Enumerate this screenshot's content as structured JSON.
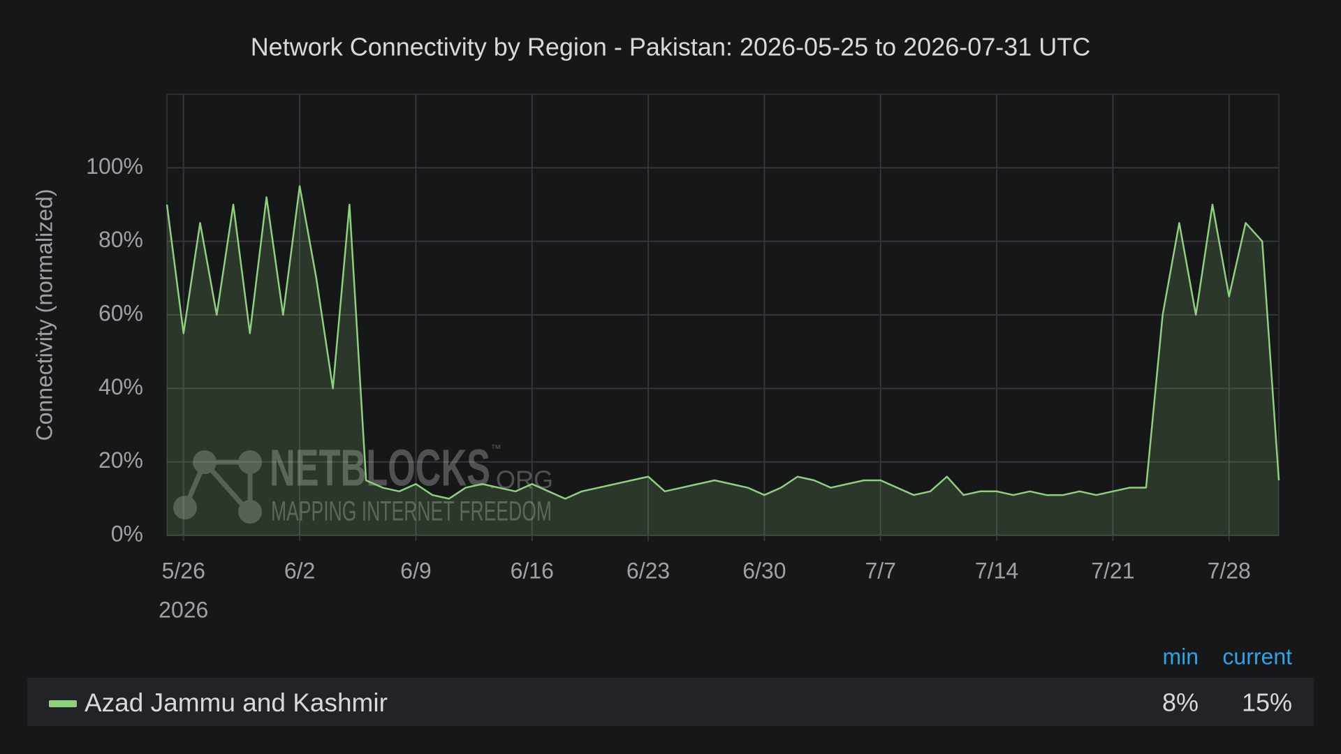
{
  "chart_data": {
    "type": "line",
    "title": "Network Connectivity by Region - Pakistan: 2026-05-25 to 2026-07-31 UTC",
    "ylabel": "Connectivity (normalized)",
    "x": [
      "2026-05-25",
      "2026-05-26",
      "2026-05-27",
      "2026-05-28",
      "2026-05-29",
      "2026-05-30",
      "2026-05-31",
      "2026-06-01",
      "2026-06-02",
      "2026-06-03",
      "2026-06-04",
      "2026-06-05",
      "2026-06-06",
      "2026-06-07",
      "2026-06-08",
      "2026-06-09",
      "2026-06-10",
      "2026-06-11",
      "2026-06-12",
      "2026-06-13",
      "2026-06-14",
      "2026-06-15",
      "2026-06-16",
      "2026-06-17",
      "2026-06-18",
      "2026-06-19",
      "2026-06-20",
      "2026-06-21",
      "2026-06-22",
      "2026-06-23",
      "2026-06-24",
      "2026-06-25",
      "2026-06-26",
      "2026-06-27",
      "2026-06-28",
      "2026-06-29",
      "2026-06-30",
      "2026-07-01",
      "2026-07-02",
      "2026-07-03",
      "2026-07-04",
      "2026-07-05",
      "2026-07-06",
      "2026-07-07",
      "2026-07-08",
      "2026-07-09",
      "2026-07-10",
      "2026-07-11",
      "2026-07-12",
      "2026-07-13",
      "2026-07-14",
      "2026-07-15",
      "2026-07-16",
      "2026-07-17",
      "2026-07-18",
      "2026-07-19",
      "2026-07-20",
      "2026-07-21",
      "2026-07-22",
      "2026-07-23",
      "2026-07-24",
      "2026-07-25",
      "2026-07-26",
      "2026-07-27",
      "2026-07-28",
      "2026-07-29",
      "2026-07-30",
      "2026-07-31"
    ],
    "series": [
      {
        "name": "Azad Jammu and Kashmir",
        "color": "#8fcf7f",
        "values": [
          90,
          55,
          85,
          60,
          90,
          55,
          92,
          60,
          95,
          70,
          40,
          90,
          15,
          13,
          12,
          14,
          11,
          10,
          13,
          14,
          13,
          12,
          14,
          12,
          10,
          12,
          13,
          14,
          15,
          16,
          12,
          13,
          14,
          15,
          14,
          13,
          11,
          13,
          16,
          15,
          13,
          14,
          15,
          15,
          13,
          11,
          12,
          16,
          11,
          12,
          12,
          11,
          12,
          11,
          11,
          12,
          11,
          12,
          13,
          13,
          60,
          85,
          60,
          90,
          65,
          85,
          80,
          15
        ]
      }
    ],
    "xlim": [
      "2026-05-25",
      "2026-07-31"
    ],
    "xticks": [
      {
        "value": "2026-05-26",
        "label": "5/26"
      },
      {
        "value": "2026-06-02",
        "label": "6/2"
      },
      {
        "value": "2026-06-09",
        "label": "6/9"
      },
      {
        "value": "2026-06-16",
        "label": "6/16"
      },
      {
        "value": "2026-06-23",
        "label": "6/23"
      },
      {
        "value": "2026-06-30",
        "label": "6/30"
      },
      {
        "value": "2026-07-07",
        "label": "7/7"
      },
      {
        "value": "2026-07-14",
        "label": "7/14"
      },
      {
        "value": "2026-07-21",
        "label": "7/21"
      },
      {
        "value": "2026-07-28",
        "label": "7/28"
      }
    ],
    "xtick_year": "2026",
    "ylim": [
      0,
      120
    ],
    "yticks": [
      {
        "value": 0,
        "label": "0%"
      },
      {
        "value": 20,
        "label": "20%"
      },
      {
        "value": 40,
        "label": "40%"
      },
      {
        "value": 60,
        "label": "60%"
      },
      {
        "value": 80,
        "label": "80%"
      },
      {
        "value": 100,
        "label": "100%"
      }
    ],
    "grid": true,
    "legend": {
      "columns": [
        "min",
        "current"
      ],
      "values": [
        8,
        15
      ],
      "value_labels": [
        "8%",
        "15%"
      ]
    },
    "watermark": {
      "name": "NETBLOCKS",
      "tm": "™",
      "suffix": ".ORG",
      "tagline": "MAPPING INTERNET FREEDOM"
    }
  }
}
